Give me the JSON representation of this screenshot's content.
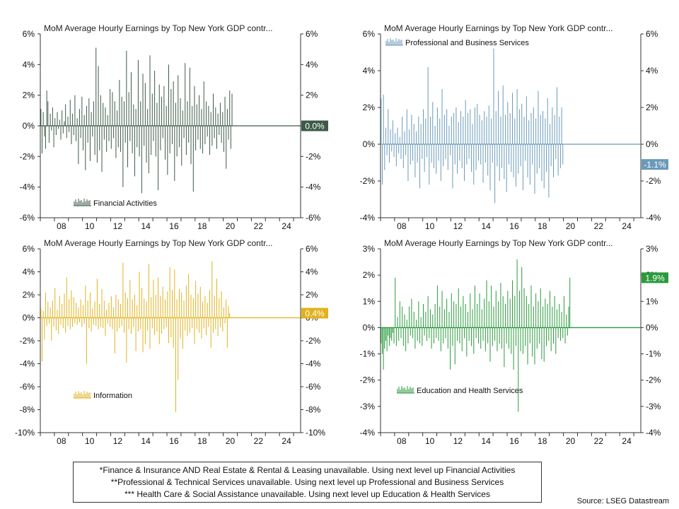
{
  "chart_data": [
    {
      "type": "bar",
      "title": "MoM Average Hourly Earnings by Top New York GDP contr...",
      "series": [
        {
          "name": "Financial Activities",
          "last_value_label": "0.0%"
        }
      ],
      "color": "#3d5a48",
      "y_ticks": [
        "6%",
        "4%",
        "2%",
        "0%",
        "-2%",
        "-4%",
        "-6%"
      ],
      "ylim": [
        -6,
        6
      ],
      "x_ticks": [
        "08",
        "10",
        "12",
        "14",
        "16",
        "18",
        "20",
        "22",
        "24"
      ],
      "x_range": [
        2007.0,
        2025.5
      ],
      "first_month": 2007.0,
      "values": [
        1.1,
        -1.8,
        0.9,
        -0.7,
        -1.5,
        2.3,
        1.6,
        -1.1,
        0.8,
        -0.3,
        1.2,
        -1.4,
        0.5,
        -0.6,
        0.9,
        -0.2,
        0.4,
        -0.9,
        1.0,
        -0.5,
        0.3,
        1.4,
        -0.8,
        0.6,
        -0.4,
        1.7,
        -1.2,
        0.8,
        -0.6,
        2.0,
        -1.0,
        0.5,
        -2.5,
        1.1,
        -0.8,
        1.9,
        -1.6,
        0.7,
        -2.9,
        1.3,
        -1.1,
        1.8,
        -2.3,
        0.9,
        -0.7,
        1.6,
        -1.9,
        5.1,
        -2.4,
        3.9,
        -1.6,
        2.0,
        -3.0,
        1.5,
        -0.9,
        1.2,
        -1.7,
        0.7,
        -1.0,
        2.4,
        -1.5,
        2.2,
        -0.8,
        1.6,
        -2.1,
        1.0,
        -1.4,
        3.0,
        -1.7,
        1.9,
        -4.0,
        1.6,
        -1.1,
        4.9,
        -2.7,
        2.2,
        -1.0,
        3.5,
        -1.8,
        1.4,
        -3.3,
        1.1,
        -1.4,
        4.3,
        -2.0,
        1.6,
        -4.4,
        3.4,
        -1.3,
        2.8,
        -2.4,
        1.1,
        -3.1,
        4.6,
        -1.9,
        2.1,
        -1.0,
        3.6,
        -2.0,
        1.5,
        -4.2,
        2.7,
        -1.6,
        1.9,
        -0.8,
        2.6,
        -2.2,
        1.3,
        -3.2,
        4.0,
        -1.8,
        2.4,
        -1.2,
        2.9,
        -3.6,
        1.5,
        -2.0,
        3.3,
        -1.4,
        1.8,
        -2.6,
        1.0,
        -0.8,
        4.1,
        -1.9,
        1.6,
        -1.1,
        3.8,
        -2.5,
        1.3,
        -4.3,
        2.6,
        -1.6,
        1.4,
        -0.9,
        2.0,
        -1.5,
        1.1,
        -1.8,
        2.9,
        -1.2,
        1.6,
        -0.7,
        1.3,
        -1.9,
        0.9,
        -1.3,
        2.1,
        -0.8,
        1.2,
        -1.5,
        0.8,
        -0.6,
        1.5,
        -1.1,
        0.9,
        -1.7,
        1.9,
        -2.8,
        1.1,
        -0.9,
        2.3,
        -1.5,
        2.1,
        0.0
      ],
      "legend_pos": "bottom-left"
    },
    {
      "type": "bar",
      "title": "MoM Average Hourly Earnings by Top New York GDP contr...",
      "series": [
        {
          "name": "Professional and Business Services",
          "last_value_label": "-1.1%"
        }
      ],
      "color": "#6a9ab9",
      "y_ticks": [
        "6%",
        "4%",
        "2%",
        "0%",
        "-2%",
        "-4%"
      ],
      "ylim": [
        -4,
        6
      ],
      "x_ticks": [
        "08",
        "10",
        "12",
        "14",
        "16",
        "18",
        "20",
        "22",
        "24"
      ],
      "x_range": [
        2007.0,
        2025.5
      ],
      "first_month": 2007.0,
      "values": [
        2.5,
        -2.2,
        2.7,
        -1.4,
        0.9,
        -0.6,
        1.9,
        -1.0,
        0.8,
        -0.4,
        1.3,
        -0.7,
        0.6,
        -1.2,
        0.9,
        -0.5,
        0.4,
        -0.8,
        1.5,
        -1.3,
        0.7,
        -0.6,
        1.9,
        -2.0,
        0.8,
        -1.1,
        1.6,
        -0.9,
        1.1,
        -1.8,
        0.7,
        -1.0,
        1.5,
        -2.4,
        1.1,
        -0.8,
        1.9,
        -1.5,
        1.4,
        -0.7,
        4.2,
        -2.2,
        1.5,
        -1.0,
        2.3,
        -1.3,
        1.0,
        -1.6,
        2.0,
        -0.9,
        1.4,
        -2.0,
        3.0,
        -1.2,
        1.6,
        -0.8,
        1.9,
        -1.4,
        1.0,
        -0.6,
        1.5,
        -2.4,
        1.7,
        -1.1,
        2.0,
        -1.6,
        1.2,
        -0.9,
        1.8,
        -1.3,
        1.5,
        -2.0,
        2.4,
        -1.1,
        1.7,
        -0.8,
        1.9,
        -1.5,
        1.1,
        -2.2,
        2.0,
        -1.4,
        2.2,
        -0.9,
        1.6,
        -1.1,
        1.3,
        -2.1,
        1.8,
        -1.0,
        1.5,
        -1.7,
        2.1,
        -2.5,
        1.4,
        -1.0,
        5.2,
        -3.2,
        1.8,
        -1.2,
        2.9,
        -2.0,
        1.5,
        -1.3,
        3.2,
        -1.9,
        1.6,
        -2.6,
        2.3,
        -1.1,
        1.7,
        -1.5,
        2.8,
        -1.8,
        1.4,
        -2.3,
        3.0,
        -1.6,
        1.9,
        -1.2,
        2.2,
        -2.5,
        1.5,
        -0.9,
        2.6,
        -1.8,
        1.3,
        -2.2,
        1.7,
        -1.1,
        2.0,
        -2.7,
        1.4,
        -1.6,
        2.9,
        -1.3,
        1.6,
        -2.0,
        1.8,
        -2.4,
        1.4,
        -1.5,
        2.5,
        -2.9,
        1.1,
        -1.2,
        2.0,
        -1.8,
        1.6,
        -0.8,
        3.1,
        -1.7,
        1.5,
        -1.3,
        2.0,
        -1.1
      ],
      "legend_pos": "top-left"
    },
    {
      "type": "bar",
      "title": "MoM Average Hourly Earnings by Top New York GDP contr...",
      "series": [
        {
          "name": "Information",
          "last_value_label": "0.4%"
        }
      ],
      "color": "#e2b21d",
      "y_ticks": [
        "6%",
        "4%",
        "2%",
        "0%",
        "-2%",
        "-4%",
        "-6%",
        "-8%",
        "-10%"
      ],
      "ylim": [
        -10,
        6
      ],
      "x_ticks": [
        "08",
        "10",
        "12",
        "14",
        "16",
        "18",
        "20",
        "22",
        "24"
      ],
      "x_range": [
        2007.0,
        2025.5
      ],
      "first_month": 2007.0,
      "values": [
        0.8,
        -3.8,
        0.6,
        -1.9,
        2.2,
        -0.7,
        1.4,
        -0.5,
        0.9,
        -2.0,
        1.5,
        -0.8,
        2.6,
        -1.1,
        0.7,
        -1.4,
        1.9,
        -0.6,
        1.2,
        -0.9,
        2.1,
        -1.3,
        3.5,
        -0.7,
        1.6,
        -1.0,
        2.4,
        -0.8,
        1.8,
        -0.5,
        1.3,
        -0.6,
        0.9,
        -0.4,
        1.6,
        -0.8,
        1.1,
        -0.5,
        2.8,
        -4.0,
        1.5,
        -0.9,
        2.2,
        -1.2,
        0.8,
        -0.6,
        1.4,
        -0.7,
        3.4,
        -1.0,
        1.2,
        -0.8,
        2.5,
        -0.9,
        1.5,
        -1.6,
        0.7,
        -0.5,
        1.3,
        -0.8,
        1.9,
        -1.0,
        0.9,
        -3.1,
        2.0,
        -1.2,
        1.6,
        -0.9,
        1.2,
        -0.7,
        4.8,
        -1.3,
        2.2,
        -3.9,
        1.7,
        -1.0,
        3.3,
        -1.4,
        1.6,
        -0.8,
        2.0,
        -2.9,
        1.1,
        -1.2,
        4.0,
        -1.0,
        2.6,
        -3.0,
        1.7,
        -2.3,
        1.4,
        -1.1,
        4.7,
        -2.7,
        1.8,
        -0.9,
        3.3,
        -1.5,
        2.0,
        -1.2,
        3.5,
        -2.3,
        1.9,
        -1.4,
        2.7,
        -1.0,
        1.6,
        -0.8,
        2.3,
        -2.2,
        4.4,
        -1.7,
        2.4,
        -2.6,
        4.2,
        -8.2,
        1.6,
        -5.4,
        2.5,
        -1.8,
        2.2,
        -2.7,
        1.5,
        -1.1,
        2.8,
        -1.6,
        3.8,
        -1.3,
        2.0,
        -0.9,
        1.7,
        -2.3,
        3.2,
        -1.0,
        2.1,
        -1.3,
        2.7,
        -1.8,
        1.4,
        -0.9,
        1.9,
        -1.5,
        1.3,
        -0.8,
        2.4,
        -2.6,
        4.9,
        -1.3,
        1.9,
        -1.0,
        3.4,
        -1.6,
        1.7,
        -0.8,
        2.3,
        -1.2,
        0.9,
        -0.5,
        1.6,
        -2.6,
        1.0,
        0.4
      ],
      "legend_pos": "bottom-left"
    },
    {
      "type": "bar",
      "title": "MoM Average Hourly Earnings by Top New York GDP contr...",
      "series": [
        {
          "name": "Education and Health Services",
          "last_value_label": "1.9%"
        }
      ],
      "color": "#2a9a3c",
      "y_ticks": [
        "3%",
        "2%",
        "1%",
        "0%",
        "-1%",
        "-2%",
        "-3%",
        "-4%"
      ],
      "ylim": [
        -4,
        3
      ],
      "x_ticks": [
        "08",
        "10",
        "12",
        "14",
        "16",
        "18",
        "20",
        "22",
        "24"
      ],
      "x_range": [
        2007.0,
        2025.5
      ],
      "first_month": 2007.0,
      "values": [
        -0.6,
        -1.0,
        -1.6,
        -0.8,
        -0.5,
        -0.9,
        -0.3,
        -0.7,
        -0.4,
        -0.5,
        -0.2,
        -0.6,
        1.9,
        -0.7,
        0.4,
        -0.5,
        1.0,
        -0.4,
        0.8,
        -0.7,
        0.5,
        -0.9,
        0.3,
        -0.6,
        0.8,
        -0.3,
        1.1,
        -0.4,
        0.6,
        -0.8,
        0.3,
        -0.5,
        1.0,
        -0.6,
        0.4,
        -0.7,
        0.9,
        -0.3,
        0.6,
        -0.5,
        1.2,
        -0.4,
        0.7,
        -0.8,
        0.5,
        -0.6,
        0.9,
        -0.4,
        1.6,
        -0.5,
        0.8,
        -0.9,
        1.4,
        -0.6,
        0.7,
        -0.4,
        1.1,
        -0.8,
        0.6,
        -1.6,
        1.3,
        -0.7,
        1.0,
        -1.4,
        0.9,
        -0.5,
        1.5,
        -0.6,
        0.8,
        -0.9,
        1.2,
        -0.4,
        0.9,
        -1.1,
        0.6,
        -0.5,
        1.3,
        -0.7,
        0.7,
        -1.0,
        1.6,
        -0.4,
        0.9,
        -0.6,
        1.3,
        -0.8,
        0.7,
        -0.5,
        1.1,
        -0.9,
        1.8,
        -0.6,
        1.0,
        -1.3,
        1.6,
        -0.7,
        0.8,
        -0.5,
        1.4,
        -0.9,
        1.0,
        -0.6,
        1.7,
        -0.8,
        1.2,
        -1.5,
        0.9,
        -0.6,
        1.4,
        -0.8,
        1.1,
        -1.0,
        1.8,
        -1.6,
        1.2,
        -0.7,
        2.6,
        -3.2,
        1.4,
        -0.9,
        2.3,
        -1.0,
        1.5,
        -0.7,
        1.2,
        -1.4,
        0.9,
        -0.6,
        1.6,
        -1.1,
        0.8,
        -1.4,
        1.3,
        -0.8,
        1.0,
        -0.6,
        1.5,
        -1.2,
        0.8,
        -1.3,
        1.1,
        -0.7,
        0.9,
        -0.5,
        1.4,
        -0.9,
        0.8,
        -0.6,
        1.2,
        -1.0,
        0.7,
        -0.4,
        0.9,
        -0.5,
        0.6,
        -0.4,
        1.2,
        -0.6,
        0.5,
        -0.3,
        0.8,
        1.9
      ],
      "legend_pos": "bottom-left"
    }
  ],
  "footnote": [
    "*Finance & Insurance AND Real Estate & Rental & Leasing unavailable. Using next level up Financial Activities",
    "**Professional & Technical Services unavailable. Using next level up Professional and Business Services",
    "*** Health Care & Social Assistance unavailable. Using next level up Education & Health Services"
  ],
  "source": "Source: LSEG Datastream"
}
